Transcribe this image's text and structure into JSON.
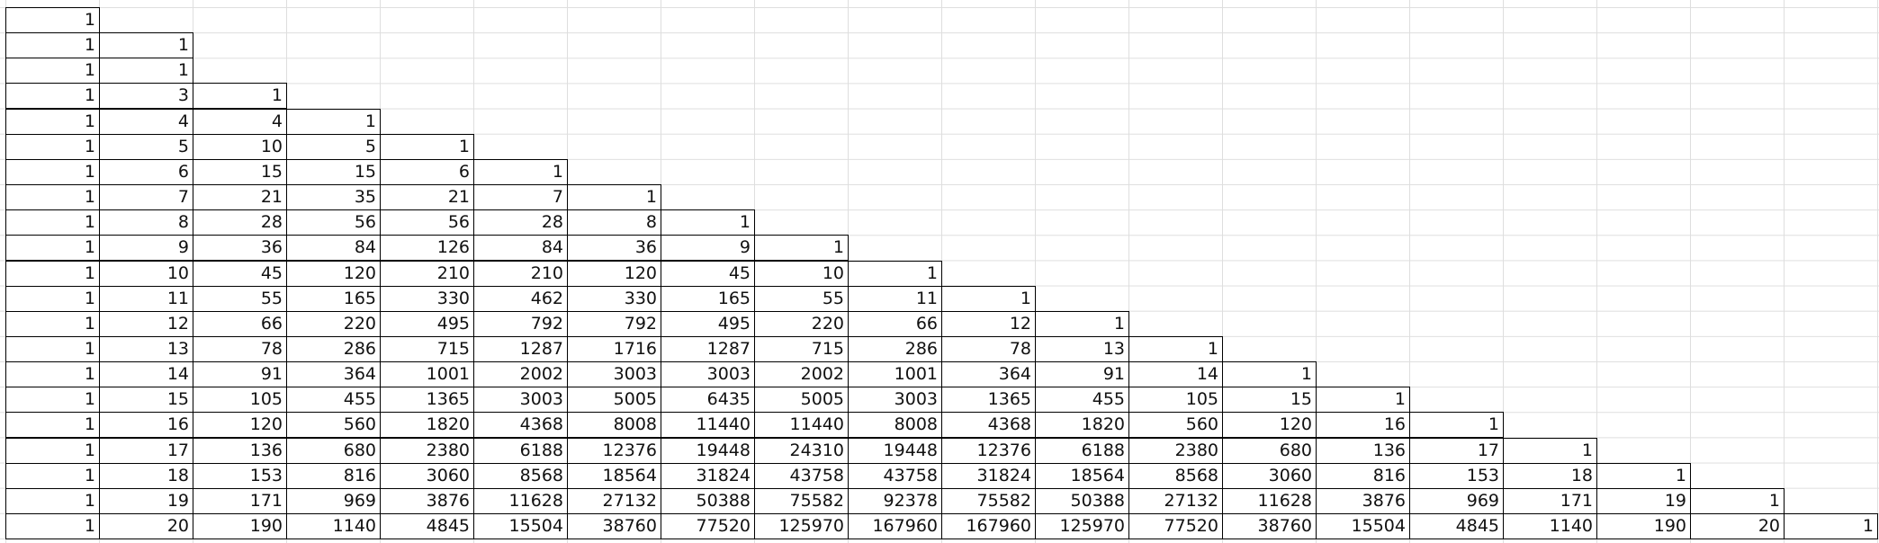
{
  "spreadsheet": {
    "rows": [
      [
        1
      ],
      [
        1,
        1
      ],
      [
        1,
        1
      ],
      [
        1,
        3,
        1
      ],
      [
        1,
        4,
        4,
        1
      ],
      [
        1,
        5,
        10,
        5,
        1
      ],
      [
        1,
        6,
        15,
        15,
        6,
        1
      ],
      [
        1,
        7,
        21,
        35,
        21,
        7,
        1
      ],
      [
        1,
        8,
        28,
        56,
        56,
        28,
        8,
        1
      ],
      [
        1,
        9,
        36,
        84,
        126,
        84,
        36,
        9,
        1
      ],
      [
        1,
        10,
        45,
        120,
        210,
        210,
        120,
        45,
        10,
        1
      ],
      [
        1,
        11,
        55,
        165,
        330,
        462,
        330,
        165,
        55,
        11,
        1
      ],
      [
        1,
        12,
        66,
        220,
        495,
        792,
        792,
        495,
        220,
        66,
        12,
        1
      ],
      [
        1,
        13,
        78,
        286,
        715,
        1287,
        1716,
        1287,
        715,
        286,
        78,
        13,
        1
      ],
      [
        1,
        14,
        91,
        364,
        1001,
        2002,
        3003,
        3003,
        2002,
        1001,
        364,
        91,
        14,
        1
      ],
      [
        1,
        15,
        105,
        455,
        1365,
        3003,
        5005,
        6435,
        5005,
        3003,
        1365,
        455,
        105,
        15,
        1
      ],
      [
        1,
        16,
        120,
        560,
        1820,
        4368,
        8008,
        11440,
        11440,
        8008,
        4368,
        1820,
        560,
        120,
        16,
        1
      ],
      [
        1,
        17,
        136,
        680,
        2380,
        6188,
        12376,
        19448,
        24310,
        19448,
        12376,
        6188,
        2380,
        680,
        136,
        17,
        1
      ],
      [
        1,
        18,
        153,
        816,
        3060,
        8568,
        18564,
        31824,
        43758,
        43758,
        31824,
        18564,
        8568,
        3060,
        816,
        153,
        18,
        1
      ],
      [
        1,
        19,
        171,
        969,
        3876,
        11628,
        27132,
        50388,
        75582,
        92378,
        75582,
        50388,
        27132,
        11628,
        3876,
        969,
        171,
        19,
        1
      ],
      [
        1,
        20,
        190,
        1140,
        4845,
        15504,
        38760,
        77520,
        125970,
        167960,
        167960,
        125970,
        77520,
        38760,
        15504,
        4845,
        1140,
        190,
        20,
        1
      ]
    ]
  }
}
